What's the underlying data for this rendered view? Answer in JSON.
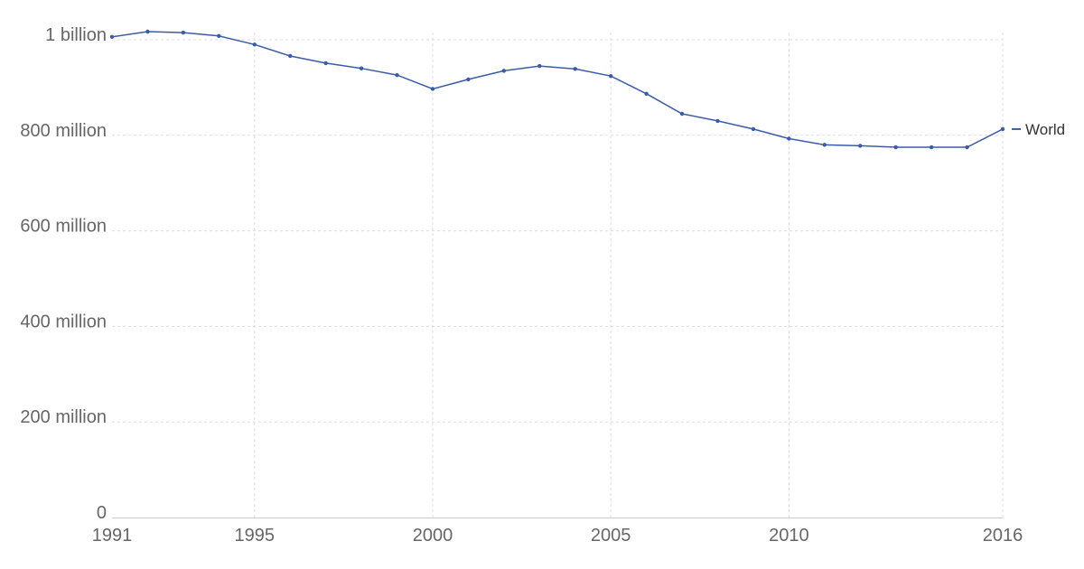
{
  "chart_data": {
    "type": "line",
    "x": [
      1991,
      1992,
      1993,
      1994,
      1995,
      1996,
      1997,
      1998,
      1999,
      2000,
      2001,
      2002,
      2003,
      2004,
      2005,
      2006,
      2007,
      2008,
      2009,
      2010,
      2011,
      2012,
      2013,
      2014,
      2015,
      2016
    ],
    "series": [
      {
        "name": "World",
        "color": "#3a5ca8",
        "values": [
          1006000000,
          1017000000,
          1015000000,
          1008000000,
          990000000,
          966000000,
          951000000,
          940000000,
          926000000,
          897000000,
          917000000,
          935000000,
          945000000,
          939000000,
          924000000,
          887000000,
          845000000,
          830000000,
          813000000,
          793000000,
          780000000,
          778000000,
          775000000,
          775000000,
          775000000,
          813000000
        ]
      }
    ],
    "ylim": [
      0,
      1000000000
    ],
    "yticks": [
      {
        "value": 0,
        "label": "0"
      },
      {
        "value": 200000000,
        "label": "200 million"
      },
      {
        "value": 400000000,
        "label": "400 million"
      },
      {
        "value": 600000000,
        "label": "600 million"
      },
      {
        "value": 800000000,
        "label": "800 million"
      },
      {
        "value": 1000000000,
        "label": "1 billion"
      }
    ],
    "xlim": [
      1991,
      2016
    ],
    "xticks": [
      {
        "value": 1991,
        "label": "1991"
      },
      {
        "value": 1995,
        "label": "1995"
      },
      {
        "value": 2000,
        "label": "2000"
      },
      {
        "value": 2005,
        "label": "2005"
      },
      {
        "value": 2010,
        "label": "2010"
      },
      {
        "value": 2016,
        "label": "2016"
      }
    ],
    "grid": true,
    "legend": "right-end-label"
  }
}
